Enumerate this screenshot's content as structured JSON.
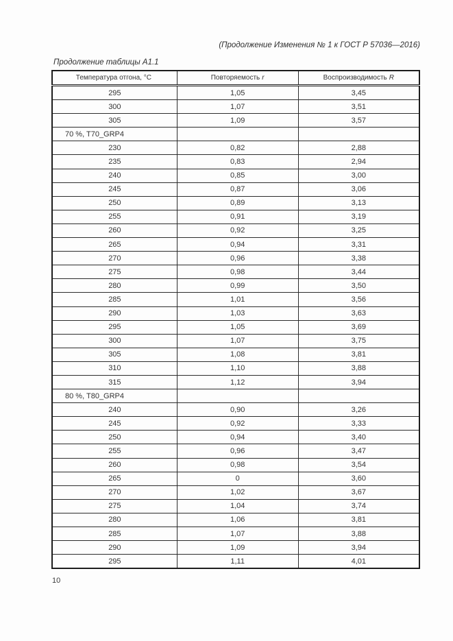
{
  "page": {
    "header_note": "(Продолжение Изменения № 1 к ГОСТ Р 57036—2016)",
    "table_caption": "Продолжение таблицы А1.1",
    "page_number": "10"
  },
  "table": {
    "columns": [
      {
        "label": "Температура отгона, °С",
        "sym": ""
      },
      {
        "label": "Повторяемость",
        "sym": "r"
      },
      {
        "label": "Воспроизводимость",
        "sym": "R"
      }
    ],
    "rows": [
      {
        "type": "data",
        "cells": [
          "295",
          "1,05",
          "3,45"
        ]
      },
      {
        "type": "data",
        "cells": [
          "300",
          "1,07",
          "3,51"
        ]
      },
      {
        "type": "data",
        "cells": [
          "305",
          "1,09",
          "3,57"
        ]
      },
      {
        "type": "group",
        "label": "70 %, T70_GRP4"
      },
      {
        "type": "data",
        "cells": [
          "230",
          "0,82",
          "2,88"
        ]
      },
      {
        "type": "data",
        "cells": [
          "235",
          "0,83",
          "2,94"
        ]
      },
      {
        "type": "data",
        "cells": [
          "240",
          "0,85",
          "3,00"
        ]
      },
      {
        "type": "data",
        "cells": [
          "245",
          "0,87",
          "3,06"
        ]
      },
      {
        "type": "data",
        "cells": [
          "250",
          "0,89",
          "3,13"
        ]
      },
      {
        "type": "data",
        "cells": [
          "255",
          "0,91",
          "3,19"
        ]
      },
      {
        "type": "data",
        "cells": [
          "260",
          "0,92",
          "3,25"
        ]
      },
      {
        "type": "data",
        "cells": [
          "265",
          "0,94",
          "3,31"
        ]
      },
      {
        "type": "data",
        "cells": [
          "270",
          "0,96",
          "3,38"
        ]
      },
      {
        "type": "data",
        "cells": [
          "275",
          "0,98",
          "3,44"
        ]
      },
      {
        "type": "data",
        "cells": [
          "280",
          "0,99",
          "3,50"
        ]
      },
      {
        "type": "data",
        "cells": [
          "285",
          "1,01",
          "3,56"
        ]
      },
      {
        "type": "data",
        "cells": [
          "290",
          "1,03",
          "3,63"
        ]
      },
      {
        "type": "data",
        "cells": [
          "295",
          "1,05",
          "3,69"
        ]
      },
      {
        "type": "data",
        "cells": [
          "300",
          "1,07",
          "3,75"
        ]
      },
      {
        "type": "data",
        "cells": [
          "305",
          "1,08",
          "3,81"
        ]
      },
      {
        "type": "data",
        "cells": [
          "310",
          "1,10",
          "3,88"
        ]
      },
      {
        "type": "data",
        "cells": [
          "315",
          "1,12",
          "3,94"
        ]
      },
      {
        "type": "group",
        "label": "80 %, T80_GRP4"
      },
      {
        "type": "data",
        "cells": [
          "240",
          "0,90",
          "3,26"
        ]
      },
      {
        "type": "data",
        "cells": [
          "245",
          "0,92",
          "3,33"
        ]
      },
      {
        "type": "data",
        "cells": [
          "250",
          "0,94",
          "3,40"
        ]
      },
      {
        "type": "data",
        "cells": [
          "255",
          "0,96",
          "3,47"
        ]
      },
      {
        "type": "data",
        "cells": [
          "260",
          "0,98",
          "3,54"
        ]
      },
      {
        "type": "data",
        "cells": [
          "265",
          "0",
          "3,60"
        ]
      },
      {
        "type": "data",
        "cells": [
          "270",
          "1,02",
          "3,67"
        ]
      },
      {
        "type": "data",
        "cells": [
          "275",
          "1,04",
          "3,74"
        ]
      },
      {
        "type": "data",
        "cells": [
          "280",
          "1,06",
          "3,81"
        ]
      },
      {
        "type": "data",
        "cells": [
          "285",
          "1,07",
          "3,88"
        ]
      },
      {
        "type": "data",
        "cells": [
          "290",
          "1,09",
          "3,94"
        ]
      },
      {
        "type": "data",
        "cells": [
          "295",
          "1,11",
          "4,01"
        ]
      }
    ]
  }
}
